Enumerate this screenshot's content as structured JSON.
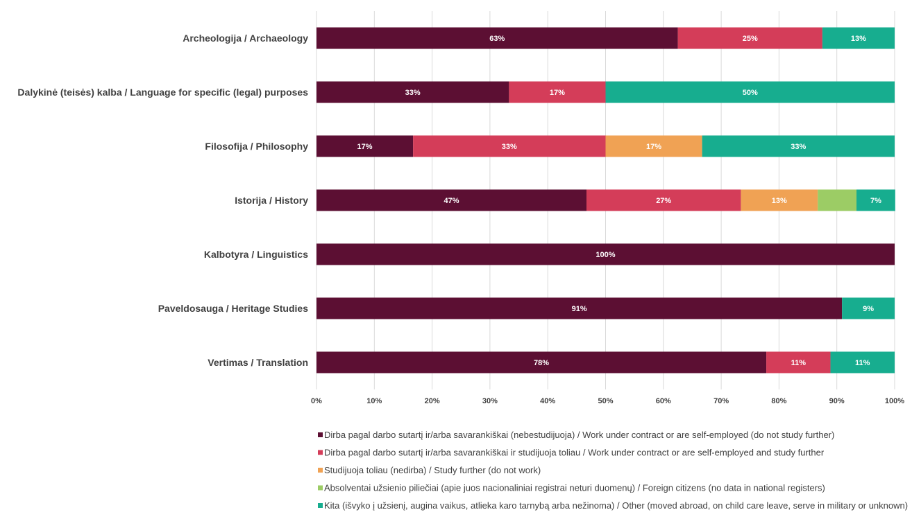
{
  "chart_data": {
    "type": "bar",
    "orientation": "horizontal",
    "stacked": true,
    "normalized": true,
    "categories": [
      "Archeologija / Archaeology",
      "Dalykinė (teisės) kalba / Language for specific (legal) purposes",
      "Filosofija / Philosophy",
      "Istorija / History",
      "Kalbotyra / Linguistics",
      "Paveldosauga / Heritage Studies",
      "Vertimas / Translation"
    ],
    "series": [
      {
        "name": "Dirba pagal darbo sutartį ir/arba savarankiškai (nebestudijuoja) / Work under contract or are self-employed (do not study further)",
        "color": "#5c0f33",
        "values": [
          62.5,
          33.3,
          16.7,
          46.7,
          100,
          90.9,
          77.8
        ],
        "labels": [
          "63%",
          "33%",
          "17%",
          "47%",
          "100%",
          "91%",
          "78%"
        ]
      },
      {
        "name": "Dirba pagal darbo sutartį ir/arba savarankiškai  ir studijuoja toliau / Work under contract or are self-employed and study further",
        "color": "#d43d59",
        "values": [
          25,
          16.7,
          33.3,
          26.7,
          0,
          0,
          11.1
        ],
        "labels": [
          "25%",
          "17%",
          "33%",
          "27%",
          "",
          "",
          "11%"
        ]
      },
      {
        "name": "Studijuoja toliau (nedirba) / Study further (do not work)",
        "color": "#f0a254",
        "values": [
          0,
          0,
          16.7,
          13.3,
          0,
          0,
          0
        ],
        "labels": [
          "",
          "",
          "17%",
          "13%",
          "",
          "",
          ""
        ]
      },
      {
        "name": "Absolventai užsienio piliečiai (apie juos nacionaliniai registrai neturi duomenų) / Foreign citizens (no data in national registers)",
        "color": "#9ccc65",
        "values": [
          0,
          0,
          0,
          6.7,
          0,
          0,
          0
        ],
        "labels": [
          "",
          "",
          "",
          "",
          "",
          "",
          ""
        ]
      },
      {
        "name": "Kita (išvyko į užsienį, augina vaikus, atlieka karo tarnybą arba nežinoma) / Other (moved abroad, on child care leave, serve in military or unknown)",
        "color": "#17ad8f",
        "values": [
          12.5,
          50,
          33.3,
          6.7,
          0,
          9.1,
          11.1
        ],
        "labels": [
          "13%",
          "50%",
          "33%",
          "7%",
          "",
          "9%",
          "11%"
        ]
      }
    ],
    "x_ticks": [
      "0%",
      "10%",
      "20%",
      "30%",
      "40%",
      "50%",
      "60%",
      "70%",
      "80%",
      "90%",
      "100%"
    ],
    "xlim": [
      0,
      100
    ],
    "grid": true,
    "legend_position": "bottom",
    "title": "",
    "xlabel": "",
    "ylabel": ""
  }
}
